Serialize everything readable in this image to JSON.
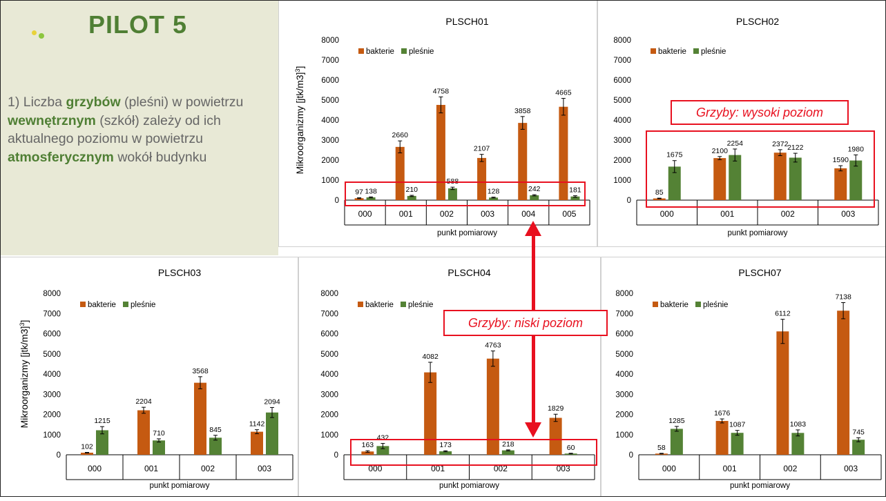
{
  "slide": {
    "title": "PILOT 5",
    "paragraph": [
      {
        "text": "1) Liczba ",
        "bold": false
      },
      {
        "text": "grzybów",
        "bold": true
      },
      {
        "text": " (pleśni) w powietrzu ",
        "bold": false
      },
      {
        "text": "wewnętrznym",
        "bold": true
      },
      {
        "text": " (szkół) zależy od ich aktualnego poziomu w powietrzu ",
        "bold": false
      },
      {
        "text": "atmosferycznym",
        "bold": true
      },
      {
        "text": " wokół budynku",
        "bold": false
      }
    ],
    "callout_high": "Grzyby: wysoki poziom",
    "callout_low": "Grzyby: niski poziom"
  },
  "colors": {
    "bacteria": "#c55a11",
    "fungi": "#548235",
    "highlight": "#e8101f",
    "title_green": "#4f7f34"
  },
  "chart_data": [
    {
      "type": "bar",
      "title": "PLSCH01",
      "xlabel": "punkt pomiarowy",
      "ylabel": "Mikroorganizmy [jtk/m3]",
      "ylim": [
        0,
        8000
      ],
      "yticks": [
        0,
        1000,
        2000,
        3000,
        4000,
        5000,
        6000,
        7000,
        8000
      ],
      "categories": [
        "000",
        "001",
        "002",
        "003",
        "004",
        "005"
      ],
      "series": [
        {
          "name": "bakterie",
          "values": [
            97,
            2660,
            4758,
            2107,
            3858,
            4665
          ],
          "errors": [
            20,
            300,
            400,
            180,
            320,
            420
          ]
        },
        {
          "name": "pleśnie",
          "values": [
            138,
            210,
            588,
            128,
            242,
            181
          ],
          "errors": [
            25,
            30,
            60,
            20,
            30,
            40
          ]
        }
      ],
      "legend": "top-left"
    },
    {
      "type": "bar",
      "title": "PLSCH02",
      "xlabel": "punkt pomiarowy",
      "ylabel": "",
      "ylim": [
        0,
        8000
      ],
      "yticks": [
        0,
        1000,
        2000,
        3000,
        4000,
        5000,
        6000,
        7000,
        8000
      ],
      "categories": [
        "000",
        "001",
        "002",
        "003"
      ],
      "series": [
        {
          "name": "bakterie",
          "values": [
            85,
            2100,
            2372,
            1590
          ],
          "errors": [
            15,
            80,
            150,
            130
          ]
        },
        {
          "name": "pleśnie",
          "values": [
            1675,
            2254,
            2122,
            1980
          ],
          "errors": [
            300,
            300,
            220,
            280
          ]
        }
      ],
      "legend": "top-left"
    },
    {
      "type": "bar",
      "title": "PLSCH03",
      "xlabel": "punkt pomiarowy",
      "ylabel": "Mikroorganizmy [jtk/m3]",
      "ylim": [
        0,
        8000
      ],
      "yticks": [
        0,
        1000,
        2000,
        3000,
        4000,
        5000,
        6000,
        7000,
        8000
      ],
      "categories": [
        "000",
        "001",
        "002",
        "003"
      ],
      "series": [
        {
          "name": "bakterie",
          "values": [
            102,
            2204,
            3568,
            1142
          ],
          "errors": [
            15,
            150,
            300,
            100
          ]
        },
        {
          "name": "pleśnie",
          "values": [
            1215,
            710,
            845,
            2094
          ],
          "errors": [
            180,
            80,
            120,
            250
          ]
        }
      ],
      "legend": "top-left"
    },
    {
      "type": "bar",
      "title": "PLSCH04",
      "xlabel": "punkt pomiarowy",
      "ylabel": "",
      "ylim": [
        0,
        8000
      ],
      "yticks": [
        0,
        1000,
        2000,
        3000,
        4000,
        5000,
        6000,
        7000,
        8000
      ],
      "categories": [
        "000",
        "001",
        "002",
        "003"
      ],
      "series": [
        {
          "name": "bakterie",
          "values": [
            163,
            4082,
            4763,
            1829
          ],
          "errors": [
            40,
            500,
            380,
            180
          ]
        },
        {
          "name": "pleśnie",
          "values": [
            432,
            173,
            218,
            60
          ],
          "errors": [
            130,
            25,
            25,
            15
          ]
        }
      ],
      "legend": "top-left"
    },
    {
      "type": "bar",
      "title": "PLSCH07",
      "xlabel": "punkt pomiarowy",
      "ylabel": "",
      "ylim": [
        0,
        8000
      ],
      "yticks": [
        0,
        1000,
        2000,
        3000,
        4000,
        5000,
        6000,
        7000,
        8000
      ],
      "categories": [
        "000",
        "001",
        "002",
        "003"
      ],
      "series": [
        {
          "name": "bakterie",
          "values": [
            58,
            1676,
            6112,
            7138
          ],
          "errors": [
            15,
            100,
            600,
            400
          ]
        },
        {
          "name": "pleśnie",
          "values": [
            1285,
            1087,
            1083,
            745
          ],
          "errors": [
            120,
            120,
            150,
            100
          ]
        }
      ],
      "legend": "top-left"
    }
  ]
}
